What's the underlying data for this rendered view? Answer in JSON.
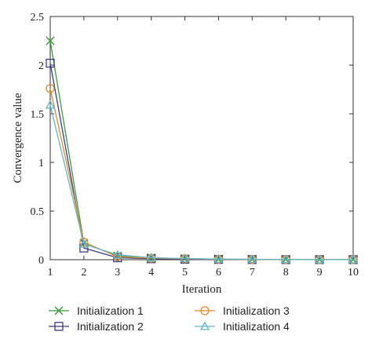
{
  "chart_data": {
    "type": "line",
    "title": "",
    "xlabel": "Iteration",
    "ylabel": "Convergence value",
    "x": [
      1,
      2,
      3,
      4,
      5,
      6,
      7,
      8,
      9,
      10
    ],
    "xlim": [
      1,
      10
    ],
    "ylim": [
      0,
      2.5
    ],
    "xticks": [
      "1",
      "2",
      "3",
      "4",
      "5",
      "6",
      "7",
      "8",
      "9",
      "10"
    ],
    "yticks": [
      "0",
      "0.5",
      "1",
      "1.5",
      "2",
      "2.5"
    ],
    "grid": false,
    "legend_position": "bottom",
    "series": [
      {
        "name": "Initialization 1",
        "color": "#3c9a3c",
        "marker": "x",
        "values": [
          2.25,
          0.17,
          0.04,
          0.02,
          0.01,
          0.005,
          0.003,
          0.002,
          0.001,
          0.001
        ]
      },
      {
        "name": "Initialization 2",
        "color": "#3a3a8c",
        "marker": "square",
        "values": [
          2.02,
          0.12,
          0.02,
          0.01,
          0.005,
          0.003,
          0.002,
          0.001,
          0.001,
          0.001
        ]
      },
      {
        "name": "Initialization 3",
        "color": "#e0892a",
        "marker": "circle",
        "values": [
          1.76,
          0.18,
          0.03,
          0.015,
          0.01,
          0.005,
          0.003,
          0.002,
          0.001,
          0.001
        ]
      },
      {
        "name": "Initialization 4",
        "color": "#5fb7c9",
        "marker": "triangle",
        "values": [
          1.59,
          0.16,
          0.05,
          0.02,
          0.012,
          0.006,
          0.004,
          0.002,
          0.001,
          0.001
        ]
      }
    ]
  }
}
